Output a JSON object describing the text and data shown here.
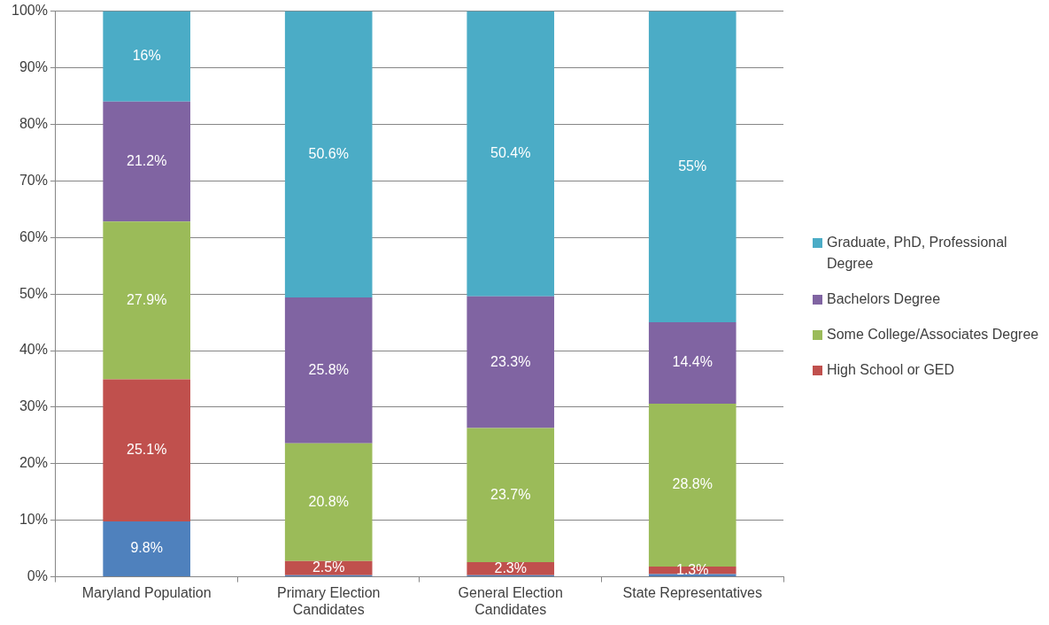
{
  "chart_data": {
    "type": "bar",
    "stacked": true,
    "categories": [
      "Maryland Population",
      [
        "Primary Election",
        "Candidates"
      ],
      [
        "General Election",
        "Candidates"
      ],
      "State Representatives"
    ],
    "series": [
      {
        "color": "#4f81bd",
        "values": [
          9.8,
          0.3,
          0.3,
          0.5
        ],
        "value_labels": [
          "9.8%",
          null,
          null,
          null
        ]
      },
      {
        "name": "High School or GED",
        "color": "#c0504d",
        "values": [
          25.1,
          2.5,
          2.3,
          1.3
        ],
        "value_labels": [
          "25.1%",
          "2.5%",
          "2.3%",
          "1.3%"
        ]
      },
      {
        "name": "Some College/Associates Degree",
        "color": "#9bbb59",
        "values": [
          27.9,
          20.8,
          23.7,
          28.8
        ],
        "value_labels": [
          "27.9%",
          "20.8%",
          "23.7%",
          "28.8%"
        ]
      },
      {
        "name": "Bachelors Degree",
        "color": "#8064a2",
        "values": [
          21.2,
          25.8,
          23.3,
          14.4
        ],
        "value_labels": [
          "21.2%",
          "25.8%",
          "23.3%",
          "14.4%"
        ]
      },
      {
        "name": "Graduate, PhD, Professional Degree",
        "color": "#4bacc6",
        "values": [
          16,
          50.6,
          50.4,
          55
        ],
        "value_labels": [
          "16%",
          "50.6%",
          "50.4%",
          "55%"
        ]
      }
    ],
    "ylim": [
      0,
      100
    ],
    "yticks": [
      {
        "value": 0,
        "label": "0%"
      },
      {
        "value": 10,
        "label": "10%"
      },
      {
        "value": 20,
        "label": "20%"
      },
      {
        "value": 30,
        "label": "30%"
      },
      {
        "value": 40,
        "label": "40%"
      },
      {
        "value": 50,
        "label": "50%"
      },
      {
        "value": 60,
        "label": "60%"
      },
      {
        "value": 70,
        "label": "70%"
      },
      {
        "value": 80,
        "label": "80%"
      },
      {
        "value": 90,
        "label": "90%"
      },
      {
        "value": 100,
        "label": "100%"
      }
    ],
    "grid": "y",
    "legend": "right"
  }
}
